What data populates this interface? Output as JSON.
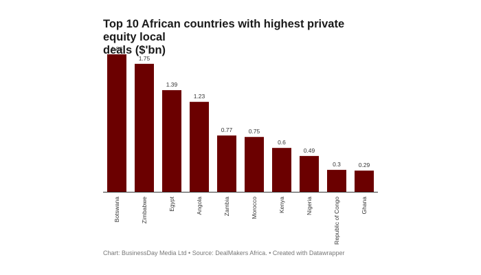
{
  "title_line1": "Top 10 African countries with highest private equity local",
  "title_line2": "deals ($'bn)",
  "footer": "Chart: BusinessDay Media Ltd • Source: DealMakers Africa. • Created with Datawrapper",
  "colors": {
    "bar": "#6b0000",
    "baseline": "#333333",
    "label": "#333333"
  },
  "chart_data": {
    "type": "bar",
    "categories": [
      "Botswana",
      "Zimbabwe",
      "Egypt",
      "Angola",
      "Zambia",
      "Morocco",
      "Kenya",
      "Nigeria",
      "Republic of Congo",
      "Ghana"
    ],
    "values": [
      1.88,
      1.75,
      1.39,
      1.23,
      0.77,
      0.75,
      0.6,
      0.49,
      0.3,
      0.29
    ],
    "value_labels": [
      "1.88",
      "1.75",
      "1.39",
      "1.23",
      "0.77",
      "0.75",
      "0.6",
      "0.49",
      "0.3",
      "0.29"
    ],
    "title": "Top 10 African countries with highest private equity local deals ($'bn)",
    "ylim": [
      0,
      1.88
    ],
    "grid": false
  }
}
